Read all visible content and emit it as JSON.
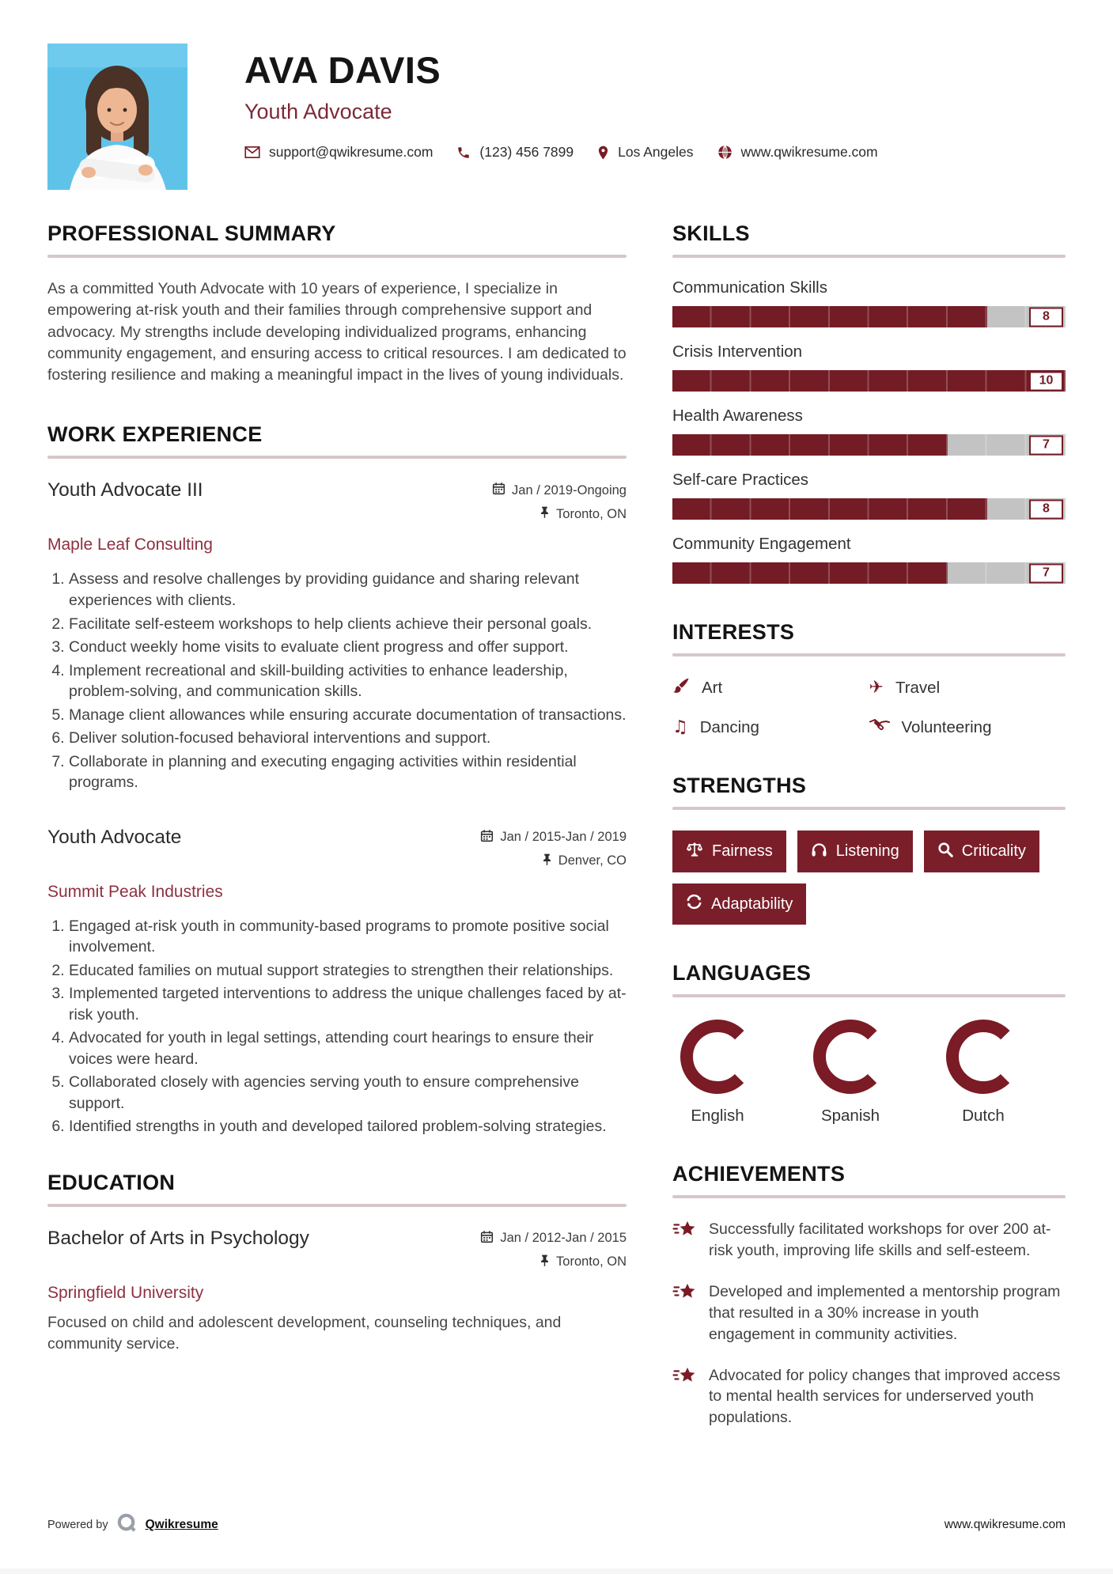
{
  "colors": {
    "accent": "#7a1b25",
    "bar_fill": "#731c25",
    "bar_track": "#c3c3c3",
    "badge_bg": "#7a1f2a",
    "company_text": "#8e3040",
    "rule": "#d7c7c9"
  },
  "header": {
    "name": "AVA DAVIS",
    "title": "Youth Advocate",
    "contact": {
      "email": "support@qwikresume.com",
      "phone": "(123) 456 7899",
      "location": "Los Angeles",
      "website": "www.qwikresume.com"
    }
  },
  "summary": {
    "heading": "PROFESSIONAL SUMMARY",
    "text": "As a committed Youth Advocate with 10 years of experience, I specialize in empowering at-risk youth and their families through comprehensive support and advocacy. My strengths include developing individualized programs, enhancing community engagement, and ensuring access to critical resources. I am dedicated to fostering resilience and making a meaningful impact in the lives of young individuals."
  },
  "work": {
    "heading": "WORK EXPERIENCE",
    "jobs": [
      {
        "title": "Youth Advocate III",
        "company": "Maple Leaf Consulting",
        "dates": "Jan / 2019-Ongoing",
        "location": "Toronto, ON",
        "bullets": [
          "Assess and resolve challenges by providing guidance and sharing relevant experiences with clients.",
          "Facilitate self-esteem workshops to help clients achieve their personal goals.",
          "Conduct weekly home visits to evaluate client progress and offer support.",
          "Implement recreational and skill-building activities to enhance leadership, problem-solving, and communication skills.",
          "Manage client allowances while ensuring accurate documentation of transactions.",
          "Deliver solution-focused behavioral interventions and support.",
          "Collaborate in planning and executing engaging activities within residential programs."
        ]
      },
      {
        "title": "Youth Advocate",
        "company": "Summit Peak Industries",
        "dates": "Jan / 2015-Jan / 2019",
        "location": "Denver, CO",
        "bullets": [
          "Engaged at-risk youth in community-based programs to promote positive social involvement.",
          "Educated families on mutual support strategies to strengthen their relationships.",
          "Implemented targeted interventions to address the unique challenges faced by at-risk youth.",
          "Advocated for youth in legal settings, attending court hearings to ensure their voices were heard.",
          "Collaborated closely with agencies serving youth to ensure comprehensive support.",
          "Identified strengths in youth and developed tailored problem-solving strategies."
        ]
      }
    ]
  },
  "education": {
    "heading": "EDUCATION",
    "degree": "Bachelor of Arts in Psychology",
    "school": "Springfield University",
    "dates": "Jan / 2012-Jan / 2015",
    "location": "Toronto, ON",
    "description": "Focused on child and adolescent development, counseling techniques, and community service."
  },
  "skills": {
    "heading": "SKILLS",
    "max": 10,
    "items": [
      {
        "label": "Communication Skills",
        "value": 8
      },
      {
        "label": "Crisis Intervention",
        "value": 10
      },
      {
        "label": "Health Awareness",
        "value": 7
      },
      {
        "label": "Self-care Practices",
        "value": 8
      },
      {
        "label": "Community Engagement",
        "value": 7
      }
    ]
  },
  "interests": {
    "heading": "INTERESTS",
    "items": [
      {
        "label": "Art",
        "icon": "paintbrush-icon"
      },
      {
        "label": "Travel",
        "icon": "airplane-icon"
      },
      {
        "label": "Dancing",
        "icon": "music-note-icon"
      },
      {
        "label": "Volunteering",
        "icon": "handshake-icon"
      }
    ]
  },
  "strengths": {
    "heading": "STRENGTHS",
    "items": [
      {
        "label": "Fairness",
        "icon": "scales-icon"
      },
      {
        "label": "Listening",
        "icon": "headphones-icon"
      },
      {
        "label": "Criticality",
        "icon": "magnifier-icon"
      },
      {
        "label": "Adaptability",
        "icon": "sync-icon"
      }
    ]
  },
  "languages": {
    "heading": "LANGUAGES",
    "items": [
      {
        "label": "English",
        "percent": 75
      },
      {
        "label": "Spanish",
        "percent": 75
      },
      {
        "label": "Dutch",
        "percent": 75
      }
    ]
  },
  "achievements": {
    "heading": "ACHIEVEMENTS",
    "items": [
      "Successfully facilitated workshops for over 200 at-risk youth, improving life skills and self-esteem.",
      "Developed and implemented a mentorship program that resulted in a 30% increase in youth engagement in community activities.",
      "Advocated for policy changes that improved access to mental health services for underserved youth populations."
    ]
  },
  "footer": {
    "powered_by": "Powered by",
    "brand": "Qwikresume",
    "website": "www.qwikresume.com"
  }
}
